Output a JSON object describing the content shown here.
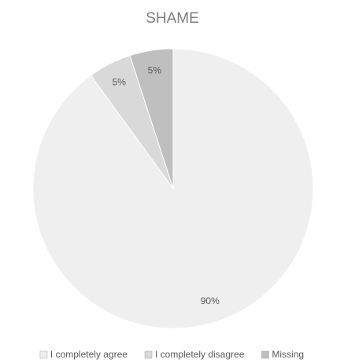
{
  "chart_data": {
    "type": "pie",
    "title": "SHAME",
    "categories": [
      "I completely agree",
      "I completely disagree",
      "Missing"
    ],
    "values": [
      90,
      5,
      5
    ],
    "value_labels": [
      "90%",
      "5%",
      "5%"
    ],
    "colors": [
      "#efefef",
      "#d9d9d9",
      "#bfbfbf"
    ],
    "legend": "bottom"
  }
}
